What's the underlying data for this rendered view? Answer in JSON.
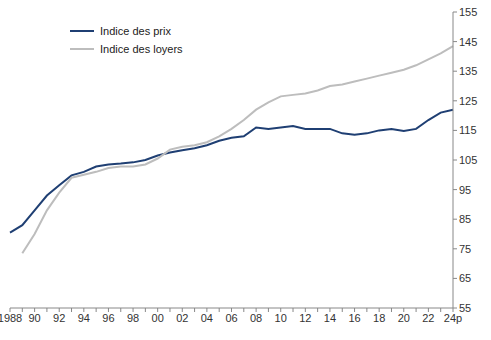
{
  "chart_data": {
    "type": "line",
    "categories": [
      "1988",
      null,
      "90",
      null,
      "92",
      null,
      "94",
      null,
      "96",
      null,
      "98",
      null,
      "00",
      null,
      "02",
      null,
      "04",
      null,
      "06",
      null,
      "08",
      null,
      "10",
      null,
      "12",
      null,
      "14",
      null,
      "16",
      null,
      "18",
      null,
      "20",
      null,
      "22",
      null,
      "24p"
    ],
    "series": [
      {
        "name": "Indice des prix",
        "color": "#1f3f73",
        "values": [
          80.5,
          83,
          88,
          93,
          96.5,
          99.8,
          101,
          102.8,
          103.5,
          103.8,
          104.2,
          105,
          106.5,
          107.5,
          108.3,
          109,
          110,
          111.5,
          112.5,
          113,
          116,
          115.5,
          116,
          116.5,
          115.5,
          115.5,
          115.5,
          114,
          113.5,
          114,
          115,
          115.5,
          114.8,
          115.5,
          118.5,
          121,
          122
        ]
      },
      {
        "name": "Indice des loyers",
        "color": "#bdbdbd",
        "values": [
          null,
          73.5,
          80,
          88,
          94,
          99,
          100,
          101,
          102.3,
          102.8,
          102.8,
          103.5,
          105.5,
          108.5,
          109.5,
          110,
          111,
          113,
          115.5,
          118.5,
          122,
          124.5,
          126.5,
          127,
          127.5,
          128.5,
          130,
          130.5,
          131.5,
          132.5,
          133.5,
          134.5,
          135.5,
          137,
          139,
          141,
          143.5
        ]
      }
    ],
    "ylim": [
      55,
      155
    ],
    "yticks": [
      55,
      65,
      75,
      85,
      95,
      105,
      115,
      125,
      135,
      145,
      155
    ],
    "legend": "upper left",
    "grid": false
  }
}
